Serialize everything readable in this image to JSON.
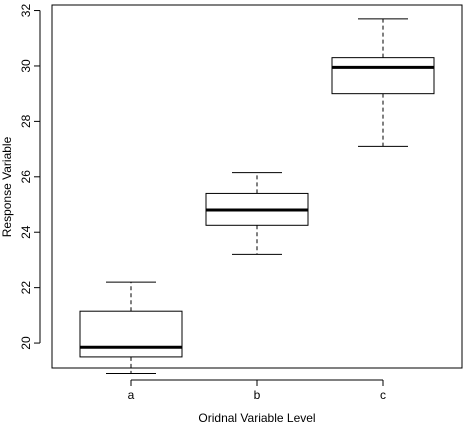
{
  "chart_data": {
    "type": "box",
    "xlabel": "Oridnal Variable Level",
    "ylabel": "Response Variable",
    "ylim": [
      19.1,
      32.2
    ],
    "yticks": [
      20,
      22,
      24,
      26,
      28,
      30,
      32
    ],
    "grid": false,
    "legend": "none",
    "categories": [
      "a",
      "b",
      "c"
    ],
    "boxes": [
      {
        "category": "a",
        "min": 18.9,
        "q1": 19.5,
        "median": 19.85,
        "q3": 21.15,
        "max": 22.2
      },
      {
        "category": "b",
        "min": 23.2,
        "q1": 24.25,
        "median": 24.8,
        "q3": 25.4,
        "max": 26.15
      },
      {
        "category": "c",
        "min": 27.1,
        "q1": 29.0,
        "median": 29.95,
        "q3": 30.3,
        "max": 31.7
      }
    ]
  }
}
